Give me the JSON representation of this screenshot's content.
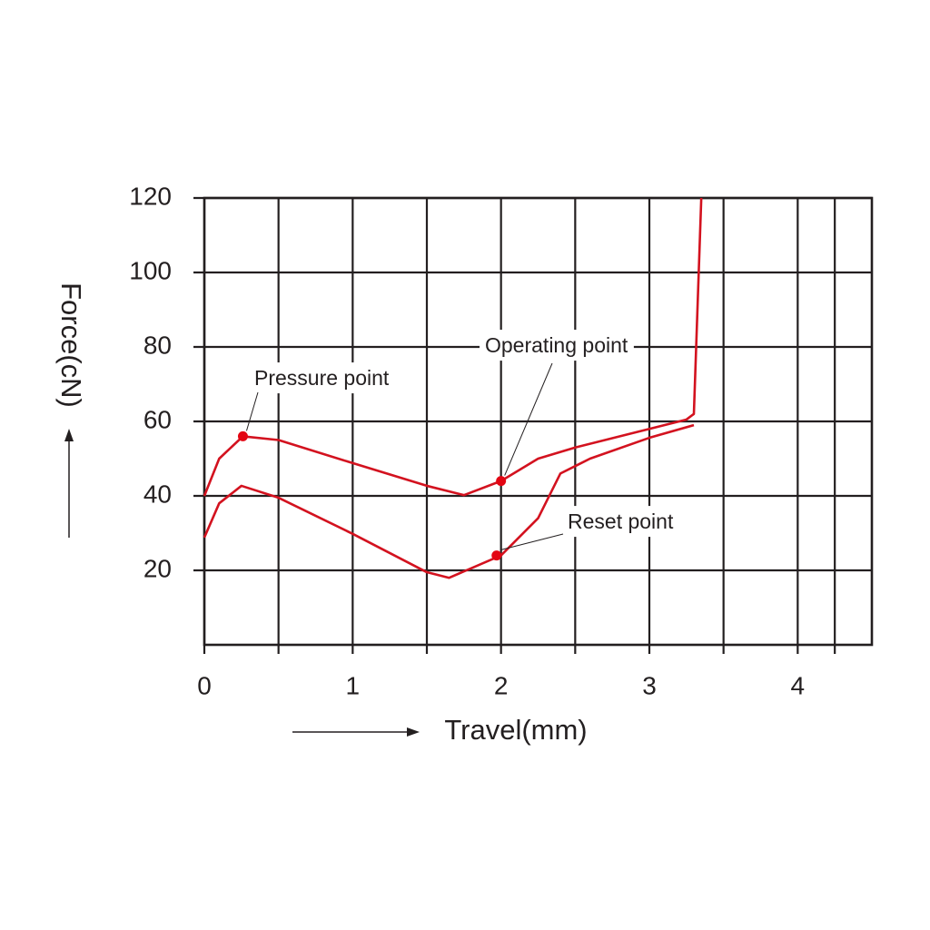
{
  "chart_data": {
    "type": "line",
    "x_label": "Travel(mm)",
    "y_label": "Force(cN)",
    "xlim": [
      0,
      4.5
    ],
    "ylim": [
      0,
      120
    ],
    "xticks": [
      0,
      1,
      2,
      3,
      4
    ],
    "yticks": [
      20,
      40,
      60,
      80,
      100,
      120
    ],
    "grid": true,
    "minor_grid": true,
    "series": [
      {
        "color": "#d3121f",
        "x": [
          0,
          0.1,
          0.26,
          0.5,
          1,
          1.5,
          1.75,
          2,
          2.25,
          2.5,
          3,
          3.25,
          3.3,
          3.35
        ],
        "values": [
          40,
          50,
          56,
          55,
          48.8,
          42.7,
          40.2,
          44,
          50,
          53,
          58,
          60.5,
          62,
          120
        ]
      },
      {
        "color": "#d3121f",
        "x": [
          0,
          0.1,
          0.25,
          0.5,
          1,
          1.5,
          1.65,
          2,
          2.25,
          2.4,
          2.6,
          3,
          3.3
        ],
        "values": [
          28.8,
          38,
          42.7,
          39.5,
          29.8,
          19.5,
          18,
          24,
          34,
          46,
          50,
          55.6,
          59
        ]
      }
    ],
    "annotations": [
      {
        "text": "Pressure point",
        "x": 0.26,
        "y": 56,
        "color": "#e30613"
      },
      {
        "text": "Operating point",
        "x": 2.0,
        "y": 44,
        "color": "#e30613"
      },
      {
        "text": "Reset point",
        "x": 1.97,
        "y": 24,
        "color": "#e30613"
      }
    ]
  }
}
